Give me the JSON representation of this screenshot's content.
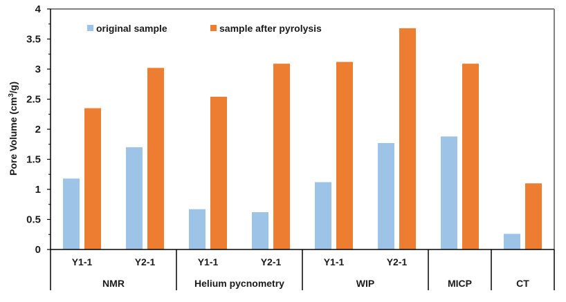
{
  "chart_data": {
    "type": "bar",
    "title": "",
    "xlabel": "",
    "ylabel_main": "Pore Volume (cm",
    "ylabel_sup": "3",
    "ylabel_unit": "/g)",
    "ylim": [
      0,
      4
    ],
    "yticks": [
      "0",
      "0.5",
      "1",
      "1.5",
      "2",
      "2.5",
      "3",
      "3.5",
      "4"
    ],
    "legend_position": "top-left",
    "categories": [
      "Y1-1",
      "Y2-1",
      "Y1-1",
      "Y2-1",
      "Y1-1",
      "Y2-1",
      "",
      ""
    ],
    "groups": [
      {
        "label": "NMR",
        "span": 2
      },
      {
        "label": "Helium pycnometry",
        "span": 2
      },
      {
        "label": "WIP",
        "span": 2
      },
      {
        "label": "MICP",
        "span": 1
      },
      {
        "label": "CT",
        "span": 1
      }
    ],
    "series": [
      {
        "name": "original sample",
        "color": "#9DC3E6",
        "values": [
          1.18,
          1.7,
          0.67,
          0.62,
          1.12,
          1.77,
          1.88,
          0.26
        ]
      },
      {
        "name": "sample after  pyrolysis",
        "color": "#ED7D31",
        "values": [
          2.35,
          3.02,
          2.54,
          3.09,
          3.12,
          3.68,
          3.09,
          1.1
        ]
      }
    ]
  }
}
